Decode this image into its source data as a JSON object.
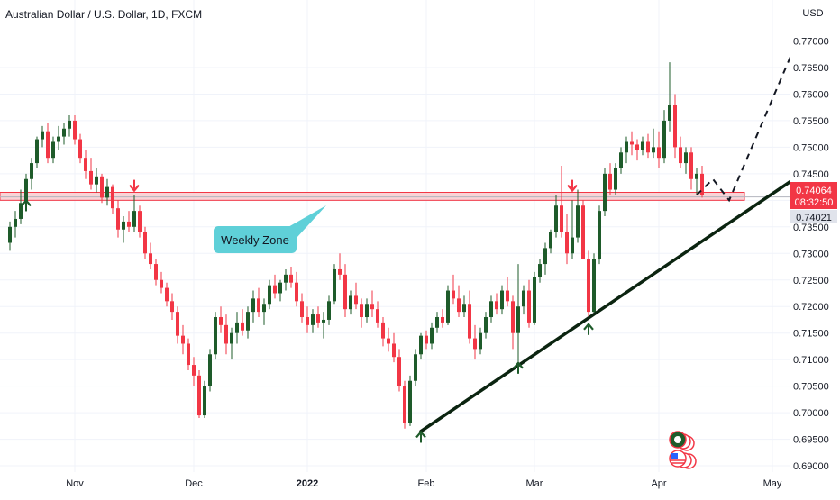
{
  "header": {
    "title": "Australian Dollar / U.S. Dollar, 1D, FXCM"
  },
  "axis": {
    "currency_label": "USD"
  },
  "price_labels": {
    "current_price": "0.74064",
    "countdown": "08:32:50",
    "secondary_price": "0.74021"
  },
  "annotation": {
    "label": "Weekly Zone"
  },
  "colors": {
    "up": "#1e5b2a",
    "down": "#f23645",
    "zone_fill": "#f8c8cc",
    "zone_border": "#f23645",
    "callout": "#5fd0d8",
    "trendline": "#0b2410",
    "price_tag": "#f23645",
    "secondary_tag": "#e0e3eb",
    "grid": "#f0f3fa"
  },
  "chart_data": {
    "type": "candlestick",
    "symbol": "Australian Dollar / U.S. Dollar",
    "timeframe": "1D",
    "source": "FXCM",
    "y_axis": {
      "ylim": [
        0.6895,
        0.7728
      ],
      "ticks": [
        "0.77000",
        "0.76500",
        "0.76000",
        "0.75500",
        "0.75000",
        "0.74500",
        "0.74000",
        "0.73500",
        "0.73000",
        "0.72500",
        "0.72000",
        "0.71500",
        "0.71000",
        "0.70500",
        "0.70000",
        "0.69500",
        "0.69000"
      ]
    },
    "x_axis": {
      "ticks": [
        {
          "label": "Nov",
          "i": 12,
          "bold": false
        },
        {
          "label": "Dec",
          "i": 34,
          "bold": false
        },
        {
          "label": "2022",
          "i": 55,
          "bold": true
        },
        {
          "label": "Feb",
          "i": 77,
          "bold": false
        },
        {
          "label": "Mar",
          "i": 97,
          "bold": false
        },
        {
          "label": "Apr",
          "i": 120,
          "bold": false
        },
        {
          "label": "May",
          "i": 141,
          "bold": false
        }
      ]
    },
    "weekly_zone": [
      0.74,
      0.7415
    ],
    "current_price_line": 0.74064,
    "trendline": [
      [
        76,
        0.6965
      ],
      [
        145,
        0.744
      ]
    ],
    "projection_path": [
      [
        127,
        0.741
      ],
      [
        130,
        0.744
      ],
      [
        133,
        0.74
      ],
      [
        146,
        0.771
      ]
    ],
    "markers": [
      {
        "i": 3,
        "price": 0.7393,
        "dir": "up",
        "color": "#1e5b2a"
      },
      {
        "i": 23,
        "price": 0.7425,
        "dir": "down",
        "color": "#f23645"
      },
      {
        "i": 76,
        "price": 0.6957,
        "dir": "up",
        "color": "#1e5b2a"
      },
      {
        "i": 94,
        "price": 0.7087,
        "dir": "up",
        "color": "#1e5b2a"
      },
      {
        "i": 104,
        "price": 0.7425,
        "dir": "down",
        "color": "#f23645"
      },
      {
        "i": 107,
        "price": 0.716,
        "dir": "up",
        "color": "#1e5b2a"
      }
    ],
    "candles": [
      [
        0.732,
        0.736,
        0.7305,
        0.735
      ],
      [
        0.735,
        0.738,
        0.733,
        0.7365
      ],
      [
        0.7365,
        0.742,
        0.7355,
        0.7395
      ],
      [
        0.7395,
        0.745,
        0.738,
        0.744
      ],
      [
        0.744,
        0.748,
        0.742,
        0.747
      ],
      [
        0.747,
        0.752,
        0.746,
        0.7515
      ],
      [
        0.7515,
        0.754,
        0.75,
        0.753
      ],
      [
        0.753,
        0.7545,
        0.747,
        0.748
      ],
      [
        0.748,
        0.752,
        0.747,
        0.751
      ],
      [
        0.751,
        0.754,
        0.7495,
        0.752
      ],
      [
        0.752,
        0.7545,
        0.7505,
        0.7535
      ],
      [
        0.7535,
        0.756,
        0.752,
        0.755
      ],
      [
        0.755,
        0.756,
        0.7505,
        0.7515
      ],
      [
        0.7515,
        0.7525,
        0.747,
        0.748
      ],
      [
        0.748,
        0.7495,
        0.744,
        0.7455
      ],
      [
        0.7455,
        0.748,
        0.742,
        0.743
      ],
      [
        0.743,
        0.746,
        0.7415,
        0.7445
      ],
      [
        0.7445,
        0.745,
        0.7395,
        0.7405
      ],
      [
        0.7405,
        0.744,
        0.739,
        0.7425
      ],
      [
        0.7425,
        0.743,
        0.7375,
        0.7385
      ],
      [
        0.7385,
        0.74,
        0.733,
        0.7345
      ],
      [
        0.7345,
        0.737,
        0.732,
        0.736
      ],
      [
        0.736,
        0.738,
        0.734,
        0.735
      ],
      [
        0.735,
        0.741,
        0.734,
        0.738
      ],
      [
        0.738,
        0.739,
        0.733,
        0.734
      ],
      [
        0.734,
        0.735,
        0.729,
        0.73
      ],
      [
        0.73,
        0.732,
        0.727,
        0.728
      ],
      [
        0.728,
        0.729,
        0.724,
        0.725
      ],
      [
        0.725,
        0.7265,
        0.7225,
        0.7235
      ],
      [
        0.7235,
        0.7245,
        0.72,
        0.721
      ],
      [
        0.721,
        0.7225,
        0.7175,
        0.719
      ],
      [
        0.719,
        0.72,
        0.713,
        0.7145
      ],
      [
        0.7145,
        0.7165,
        0.711,
        0.713
      ],
      [
        0.713,
        0.714,
        0.708,
        0.709
      ],
      [
        0.709,
        0.7105,
        0.705,
        0.707
      ],
      [
        0.707,
        0.708,
        0.699,
        0.6995
      ],
      [
        0.6995,
        0.706,
        0.699,
        0.705
      ],
      [
        0.705,
        0.712,
        0.704,
        0.711
      ],
      [
        0.711,
        0.719,
        0.71,
        0.718
      ],
      [
        0.718,
        0.72,
        0.715,
        0.7165
      ],
      [
        0.7165,
        0.7185,
        0.711,
        0.713
      ],
      [
        0.713,
        0.716,
        0.71,
        0.715
      ],
      [
        0.715,
        0.719,
        0.713,
        0.717
      ],
      [
        0.717,
        0.7195,
        0.7145,
        0.7155
      ],
      [
        0.7155,
        0.72,
        0.714,
        0.719
      ],
      [
        0.719,
        0.723,
        0.717,
        0.7215
      ],
      [
        0.7215,
        0.7235,
        0.718,
        0.719
      ],
      [
        0.719,
        0.7215,
        0.7165,
        0.7205
      ],
      [
        0.7205,
        0.725,
        0.7195,
        0.724
      ],
      [
        0.724,
        0.726,
        0.7215,
        0.7225
      ],
      [
        0.7225,
        0.725,
        0.721,
        0.7245
      ],
      [
        0.7245,
        0.727,
        0.723,
        0.726
      ],
      [
        0.726,
        0.7275,
        0.7235,
        0.7245
      ],
      [
        0.7245,
        0.7265,
        0.72,
        0.721
      ],
      [
        0.721,
        0.7225,
        0.717,
        0.718
      ],
      [
        0.718,
        0.72,
        0.715,
        0.7165
      ],
      [
        0.7165,
        0.7195,
        0.715,
        0.7185
      ],
      [
        0.7185,
        0.72,
        0.716,
        0.717
      ],
      [
        0.717,
        0.719,
        0.714,
        0.7175
      ],
      [
        0.7175,
        0.722,
        0.7165,
        0.721
      ],
      [
        0.721,
        0.728,
        0.7205,
        0.727
      ],
      [
        0.727,
        0.73,
        0.725,
        0.726
      ],
      [
        0.726,
        0.728,
        0.718,
        0.7195
      ],
      [
        0.7195,
        0.723,
        0.7185,
        0.722
      ],
      [
        0.722,
        0.7245,
        0.7195,
        0.7205
      ],
      [
        0.7205,
        0.7215,
        0.716,
        0.718
      ],
      [
        0.718,
        0.7215,
        0.717,
        0.7205
      ],
      [
        0.7205,
        0.723,
        0.718,
        0.7195
      ],
      [
        0.7195,
        0.721,
        0.716,
        0.717
      ],
      [
        0.717,
        0.718,
        0.7125,
        0.714
      ],
      [
        0.714,
        0.716,
        0.7115,
        0.713
      ],
      [
        0.713,
        0.715,
        0.7095,
        0.7105
      ],
      [
        0.7105,
        0.712,
        0.704,
        0.705
      ],
      [
        0.705,
        0.706,
        0.697,
        0.698
      ],
      [
        0.698,
        0.707,
        0.6975,
        0.706
      ],
      [
        0.706,
        0.712,
        0.705,
        0.711
      ],
      [
        0.711,
        0.715,
        0.71,
        0.7145
      ],
      [
        0.7145,
        0.7155,
        0.712,
        0.713
      ],
      [
        0.713,
        0.717,
        0.712,
        0.716
      ],
      [
        0.716,
        0.719,
        0.715,
        0.718
      ],
      [
        0.718,
        0.7195,
        0.716,
        0.717
      ],
      [
        0.717,
        0.724,
        0.7165,
        0.723
      ],
      [
        0.723,
        0.726,
        0.7205,
        0.7215
      ],
      [
        0.7215,
        0.724,
        0.718,
        0.719
      ],
      [
        0.719,
        0.722,
        0.718,
        0.7205
      ],
      [
        0.7205,
        0.723,
        0.713,
        0.714
      ],
      [
        0.714,
        0.7165,
        0.71,
        0.712
      ],
      [
        0.712,
        0.716,
        0.711,
        0.715
      ],
      [
        0.715,
        0.719,
        0.714,
        0.718
      ],
      [
        0.718,
        0.722,
        0.717,
        0.721
      ],
      [
        0.721,
        0.7225,
        0.7185,
        0.7195
      ],
      [
        0.7195,
        0.724,
        0.7185,
        0.723
      ],
      [
        0.723,
        0.7255,
        0.72,
        0.721
      ],
      [
        0.721,
        0.722,
        0.712,
        0.715
      ],
      [
        0.715,
        0.728,
        0.709,
        0.72
      ],
      [
        0.72,
        0.724,
        0.7185,
        0.723
      ],
      [
        0.723,
        0.725,
        0.716,
        0.717
      ],
      [
        0.717,
        0.7265,
        0.7165,
        0.7255
      ],
      [
        0.7255,
        0.729,
        0.7245,
        0.728
      ],
      [
        0.728,
        0.732,
        0.726,
        0.731
      ],
      [
        0.731,
        0.7345,
        0.73,
        0.734
      ],
      [
        0.734,
        0.741,
        0.733,
        0.739
      ],
      [
        0.739,
        0.7465,
        0.733,
        0.734
      ],
      [
        0.734,
        0.7375,
        0.728,
        0.73
      ],
      [
        0.73,
        0.74,
        0.729,
        0.733
      ],
      [
        0.733,
        0.742,
        0.732,
        0.739
      ],
      [
        0.739,
        0.74,
        0.729,
        0.729
      ],
      [
        0.729,
        0.7305,
        0.718,
        0.719
      ],
      [
        0.719,
        0.73,
        0.7185,
        0.729
      ],
      [
        0.729,
        0.739,
        0.728,
        0.738
      ],
      [
        0.738,
        0.746,
        0.737,
        0.745
      ],
      [
        0.745,
        0.747,
        0.741,
        0.742
      ],
      [
        0.742,
        0.747,
        0.741,
        0.746
      ],
      [
        0.746,
        0.75,
        0.745,
        0.749
      ],
      [
        0.749,
        0.752,
        0.747,
        0.751
      ],
      [
        0.751,
        0.753,
        0.7485,
        0.7505
      ],
      [
        0.7505,
        0.7515,
        0.7475,
        0.7495
      ],
      [
        0.7495,
        0.752,
        0.7485,
        0.751
      ],
      [
        0.751,
        0.7525,
        0.748,
        0.749
      ],
      [
        0.749,
        0.7535,
        0.748,
        0.75
      ],
      [
        0.75,
        0.753,
        0.746,
        0.748
      ],
      [
        0.748,
        0.757,
        0.747,
        0.755
      ],
      [
        0.755,
        0.766,
        0.753,
        0.758
      ],
      [
        0.758,
        0.76,
        0.748,
        0.75
      ],
      [
        0.75,
        0.752,
        0.746,
        0.747
      ],
      [
        0.747,
        0.75,
        0.745,
        0.749
      ],
      [
        0.749,
        0.75,
        0.742,
        0.744
      ],
      [
        0.744,
        0.746,
        0.741,
        0.745
      ],
      [
        0.745,
        0.7465,
        0.7405,
        0.741
      ]
    ]
  }
}
